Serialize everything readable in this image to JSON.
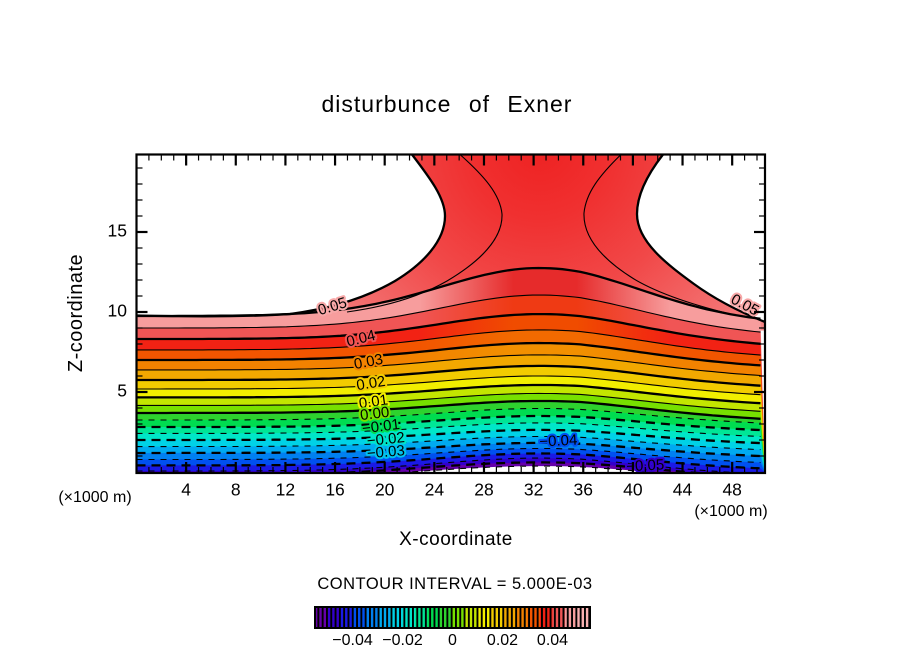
{
  "chart_data": {
    "type": "filled_contour",
    "title": "disturbunce of Exner",
    "xlabel": "X-coordinate",
    "ylabel": "Z-coordinate",
    "x_unit_left": "(×1000 m)",
    "x_unit_right": "(×1000 m)",
    "contour_interval_label": "CONTOUR INTERVAL = 5.000E-03",
    "contour_interval": 0.005,
    "x_axis": {
      "range": [
        0,
        50.7
      ],
      "tick_labels": [
        "4",
        "8",
        "12",
        "16",
        "20",
        "24",
        "28",
        "32",
        "36",
        "40",
        "44",
        "48"
      ],
      "tick_values": [
        4,
        8,
        12,
        16,
        20,
        24,
        28,
        32,
        36,
        40,
        44,
        48
      ],
      "minor_step": 1
    },
    "y_axis": {
      "range": [
        0,
        19.8
      ],
      "tick_labels": [
        "5",
        "10",
        "15"
      ],
      "tick_values": [
        5,
        10,
        15
      ],
      "minor_step": 1
    },
    "ridge": {
      "x": 32.5,
      "half_width": 11.3
    },
    "saddle_region": {
      "fill_core": "#ee2222",
      "fill_mid": "#f14848",
      "fill_rim": "#f8b0b0"
    },
    "contours": [
      {
        "value": 0.05,
        "z_edge": 9.75,
        "z_ridge": 12.75,
        "band_below": "#f79d9d",
        "band_center": "#e62b2b"
      },
      {
        "value": 0.045,
        "z_edge": 9.0,
        "z_ridge": 11.06,
        "band_below": "#f05555",
        "band_center": "#ef3a14"
      },
      {
        "value": 0.04,
        "z_edge": 8.31,
        "z_ridge": 9.87,
        "band_below": "#f22214",
        "band_center": "#f04c00"
      },
      {
        "value": 0.035,
        "z_edge": 7.63,
        "z_ridge": 8.88,
        "band_below": "#f25500",
        "band_center": "#f26a00"
      },
      {
        "value": 0.03,
        "z_edge": 7.0,
        "z_ridge": 8.06,
        "band_below": "#f28200",
        "band_center": "#f29000"
      },
      {
        "value": 0.025,
        "z_edge": 6.38,
        "z_ridge": 7.32,
        "band_below": "#f2a800"
      },
      {
        "value": 0.02,
        "z_edge": 5.75,
        "z_ridge": 6.63,
        "band_below": "#f2cc00"
      },
      {
        "value": 0.015,
        "z_edge": 5.19,
        "z_ridge": 6.0,
        "band_below": "#f2ee00"
      },
      {
        "value": 0.01,
        "z_edge": 4.66,
        "z_ridge": 5.44,
        "band_below": "#c3e600"
      },
      {
        "value": 0.005,
        "z_edge": 4.16,
        "z_ridge": 4.91,
        "band_below": "#77e000"
      },
      {
        "value": 0.0,
        "z_edge": 3.69,
        "z_ridge": 4.44,
        "band_below": "#2ed22e"
      },
      {
        "value": -0.005,
        "z_edge": 3.25,
        "z_ridge": 3.97,
        "band_below": "#00dc50"
      },
      {
        "value": -0.01,
        "z_edge": 2.81,
        "z_ridge": 3.5,
        "band_below": "#00e696"
      },
      {
        "value": -0.015,
        "z_edge": 2.41,
        "z_ridge": 3.07,
        "band_below": "#00e6c8"
      },
      {
        "value": -0.02,
        "z_edge": 2.0,
        "z_ridge": 2.63,
        "band_below": "#00d2e6"
      },
      {
        "value": -0.025,
        "z_edge": 1.59,
        "z_ridge": 2.22,
        "band_below": "#00aaf0"
      },
      {
        "value": -0.03,
        "z_edge": 1.19,
        "z_ridge": 1.82,
        "band_below": "#0080f0"
      },
      {
        "value": -0.035,
        "z_edge": 0.78,
        "z_ridge": 1.47,
        "band_below": "#0050f0"
      },
      {
        "value": -0.04,
        "z_edge": 0.41,
        "z_ridge": 1.16,
        "band_below": "#1a1ae6"
      },
      {
        "value": -0.045,
        "z_edge": 0.06,
        "z_ridge": 0.87,
        "band_below": "#3300cc"
      },
      {
        "value": -0.05,
        "z_edge": -0.28,
        "z_ridge": 0.6,
        "band_below": "#6600aa",
        "wd": 170
      },
      {
        "value": -0.055,
        "z_edge": -0.63,
        "z_ridge": 0.37,
        "band_below": "#ffffff",
        "wd": 190
      }
    ],
    "labels": [
      {
        "text": "0.05",
        "x": 15.8,
        "z": 10.3,
        "rot": -17,
        "halo": "#f8a8a8"
      },
      {
        "text": "0.04",
        "x": 18.1,
        "z": 8.3,
        "rot": -14,
        "halo": "#f05555"
      },
      {
        "text": "0.03",
        "x": 18.7,
        "z": 6.85,
        "rot": -11,
        "halo": "#f28200"
      },
      {
        "text": "0.02",
        "x": 18.9,
        "z": 5.5,
        "rot": -9,
        "halo": "#f2cc00"
      },
      {
        "text": "0.01",
        "x": 19.1,
        "z": 4.35,
        "rot": -8,
        "halo": "#f2ee00"
      },
      {
        "text": "0.00",
        "x": 19.2,
        "z": 3.6,
        "rot": -7,
        "halo": "#77e000"
      },
      {
        "text": "−0.01",
        "x": 19.7,
        "z": 2.8,
        "rot": -7,
        "halo": "#00dc50"
      },
      {
        "text": "−0.02",
        "x": 20.1,
        "z": 2.0,
        "rot": -6,
        "halo": "#00e6c8"
      },
      {
        "text": "−0.03",
        "x": 20.1,
        "z": 1.2,
        "rot": -5,
        "halo": "#00c2ec"
      },
      {
        "text": "−0.04",
        "x": 34.0,
        "z": 1.9,
        "rot": -3,
        "halo": "#0050f0"
      },
      {
        "text": "−0.05",
        "x": 41.0,
        "z": 0.35,
        "rot": -3,
        "halo": "#3300cc"
      },
      {
        "text": "0.05",
        "x": 49.0,
        "z": 10.4,
        "rot": 28,
        "halo": "#f8a8a8"
      }
    ],
    "colorbar": {
      "range": [
        -0.055,
        0.055
      ],
      "ticks": [
        {
          "label": "−0.04",
          "value": -0.04
        },
        {
          "label": "−0.02",
          "value": -0.02
        },
        {
          "label": "0",
          "value": 0
        },
        {
          "label": "0.02",
          "value": 0.02
        },
        {
          "label": "0.04",
          "value": 0.04
        }
      ],
      "colors": [
        "#6600aa",
        "#3300cc",
        "#1a1ae6",
        "#0050f0",
        "#0080f0",
        "#00aaf0",
        "#00d2e6",
        "#00e6c8",
        "#00e696",
        "#00dc50",
        "#2ed22e",
        "#77e000",
        "#c3e600",
        "#f2ee00",
        "#f2cc00",
        "#f2a800",
        "#f28200",
        "#f25500",
        "#f22214",
        "#f05555",
        "#f79d9d",
        "#f8b0b0"
      ]
    }
  }
}
